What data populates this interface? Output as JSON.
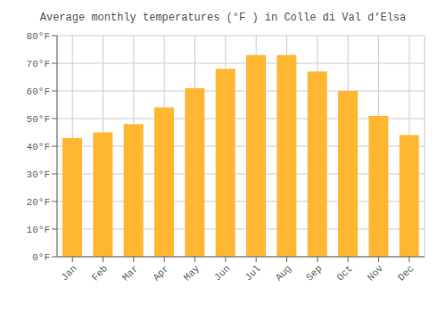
{
  "chart_data": {
    "type": "bar",
    "title": "Average monthly temperatures (°F ) in Colle di Val d’Elsa",
    "categories": [
      "Jan",
      "Feb",
      "Mar",
      "Apr",
      "May",
      "Jun",
      "Jul",
      "Aug",
      "Sep",
      "Oct",
      "Nov",
      "Dec"
    ],
    "values": [
      43,
      45,
      48,
      54,
      61,
      68,
      73,
      73,
      67,
      60,
      51,
      44
    ],
    "color": "#FFB733",
    "ylim": [
      0,
      80
    ],
    "yticks": [
      {
        "value": 0,
        "label": "0°F"
      },
      {
        "value": 10,
        "label": "10°F"
      },
      {
        "value": 20,
        "label": "20°F"
      },
      {
        "value": 30,
        "label": "30°F"
      },
      {
        "value": 40,
        "label": "40°F"
      },
      {
        "value": 50,
        "label": "50°F"
      },
      {
        "value": 60,
        "label": "60°F"
      },
      {
        "value": 70,
        "label": "70°F"
      },
      {
        "value": 80,
        "label": "80°F"
      }
    ],
    "grid": true
  }
}
